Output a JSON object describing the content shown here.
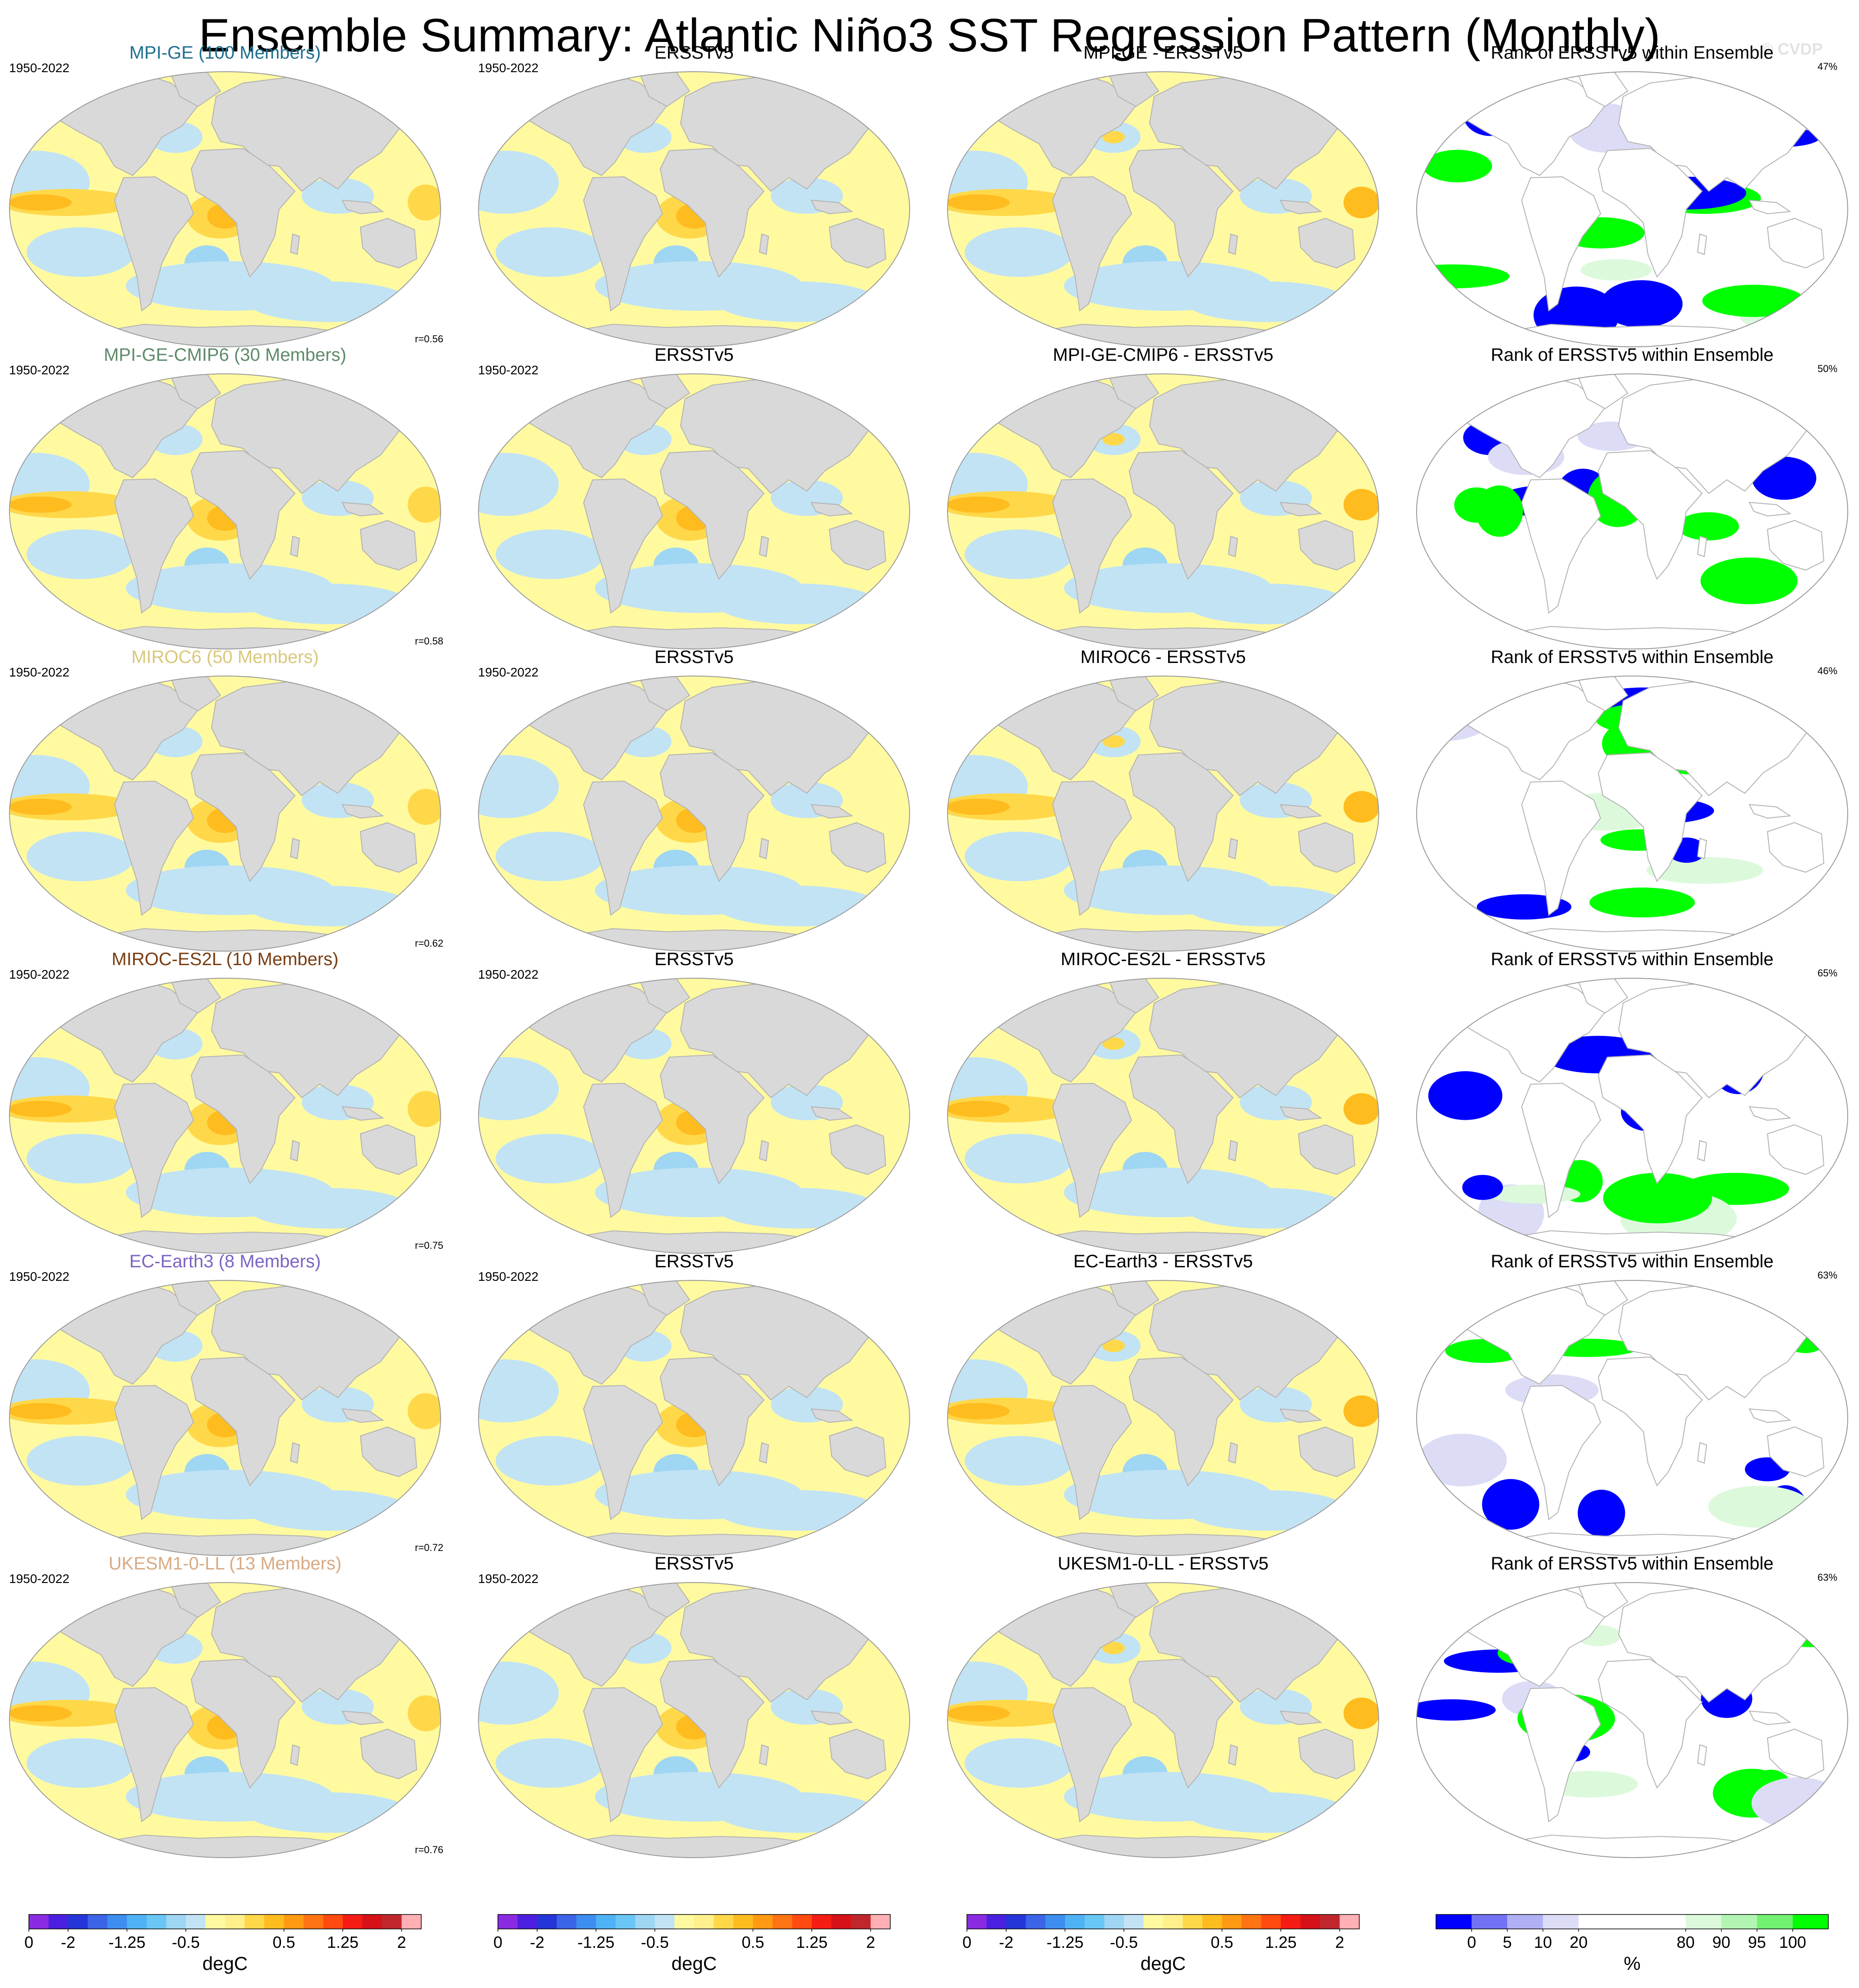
{
  "title": "Ensemble Summary: Atlantic Niño3 SST Regression Pattern (Monthly)",
  "watermark": "© CVDP",
  "rows": [
    {
      "model": "MPI-GE (100 Members)",
      "model_color": "#1f6f8f",
      "period": "1950-2022",
      "obs_title": "ERSSTv5",
      "obs_period": "1950-2022",
      "diff_title": "MPI-GE - ERSSTv5",
      "rank_title": "Rank of ERSSTv5 within Ensemble",
      "pattern_corr": "r=0.56",
      "rank_pct": "47%"
    },
    {
      "model": "MPI-GE-CMIP6 (30 Members)",
      "model_color": "#5e8a69",
      "period": "1950-2022",
      "obs_title": "ERSSTv5",
      "obs_period": "1950-2022",
      "diff_title": "MPI-GE-CMIP6 - ERSSTv5",
      "rank_title": "Rank of ERSSTv5 within Ensemble",
      "pattern_corr": "r=0.58",
      "rank_pct": "50%"
    },
    {
      "model": "MIROC6 (50 Members)",
      "model_color": "#d9c87a",
      "period": "1950-2022",
      "obs_title": "ERSSTv5",
      "obs_period": "1950-2022",
      "diff_title": "MIROC6 - ERSSTv5",
      "rank_title": "Rank of ERSSTv5 within Ensemble",
      "pattern_corr": "r=0.62",
      "rank_pct": "46%"
    },
    {
      "model": "MIROC-ES2L (10 Members)",
      "model_color": "#7a3d12",
      "period": "1950-2022",
      "obs_title": "ERSSTv5",
      "obs_period": "1950-2022",
      "diff_title": "MIROC-ES2L - ERSSTv5",
      "rank_title": "Rank of ERSSTv5 within Ensemble",
      "pattern_corr": "r=0.75",
      "rank_pct": "65%"
    },
    {
      "model": "EC-Earth3 (8 Members)",
      "model_color": "#7d63c4",
      "period": "1950-2022",
      "obs_title": "ERSSTv5",
      "obs_period": "1950-2022",
      "diff_title": "EC-Earth3 - ERSSTv5",
      "rank_title": "Rank of ERSSTv5 within Ensemble",
      "pattern_corr": "r=0.72",
      "rank_pct": "63%"
    },
    {
      "model": "UKESM1-0-LL (13 Members)",
      "model_color": "#d8aa82",
      "period": "1950-2022",
      "obs_title": "ERSSTv5",
      "obs_period": "1950-2022",
      "diff_title": "UKESM1-0-LL - ERSSTv5",
      "rank_title": "Rank of ERSSTv5 within Ensemble",
      "pattern_corr": "r=0.76",
      "rank_pct": "63%"
    }
  ],
  "colorbar_sst": {
    "unit": "degC",
    "tick_labels": [
      "-2",
      "-1.25",
      "-0.5",
      "0",
      "0.5",
      "1.25",
      "2"
    ],
    "tick_values": [
      -2,
      -1.25,
      -0.5,
      0,
      0.5,
      1.25,
      2
    ],
    "levels": [
      -2.25,
      -2,
      -1.75,
      -1.5,
      -1.25,
      -1,
      -0.75,
      -0.5,
      -0.25,
      -0.1,
      0.1,
      0.25,
      0.5,
      0.75,
      1,
      1.25,
      1.5,
      1.75,
      2,
      2.25
    ],
    "colors": [
      "#8a2be2",
      "#4b1fe0",
      "#2436d8",
      "#3c64e6",
      "#3d8ef0",
      "#4fb2f5",
      "#6ac6f5",
      "#9ed6f3",
      "#c2e3f4",
      "#fffaa0",
      "#fff08c",
      "#ffd84a",
      "#ffbc1f",
      "#ff9a12",
      "#ff7412",
      "#ff4b0f",
      "#f51c14",
      "#d61219",
      "#c0272d",
      "#ffb0b5"
    ]
  },
  "colorbar_rank": {
    "unit": "%",
    "tick_labels": [
      "0",
      "5",
      "10",
      "20",
      "80",
      "90",
      "95",
      "100"
    ],
    "colors": [
      "#0000ff",
      "#7272f5",
      "#b0b0f5",
      "#dcdcf6",
      "#ffffff",
      "#ffffff",
      "#ffffff",
      "#dcf9dc",
      "#b2f5b2",
      "#72f172",
      "#00ff00"
    ]
  },
  "colors": {
    "land": "#d9d9d9",
    "ocean_neutral": "#fffaa0",
    "ocean_cool": "#c2e3f4",
    "warm_1": "#ffd84a",
    "warm_2": "#ffbc1f",
    "cool_2": "#9ed6f3",
    "rank_low": "#0000ff",
    "rank_high": "#00ff00",
    "rank_mid_low": "#dcdcf6",
    "rank_mid_high": "#dcf9dc"
  }
}
